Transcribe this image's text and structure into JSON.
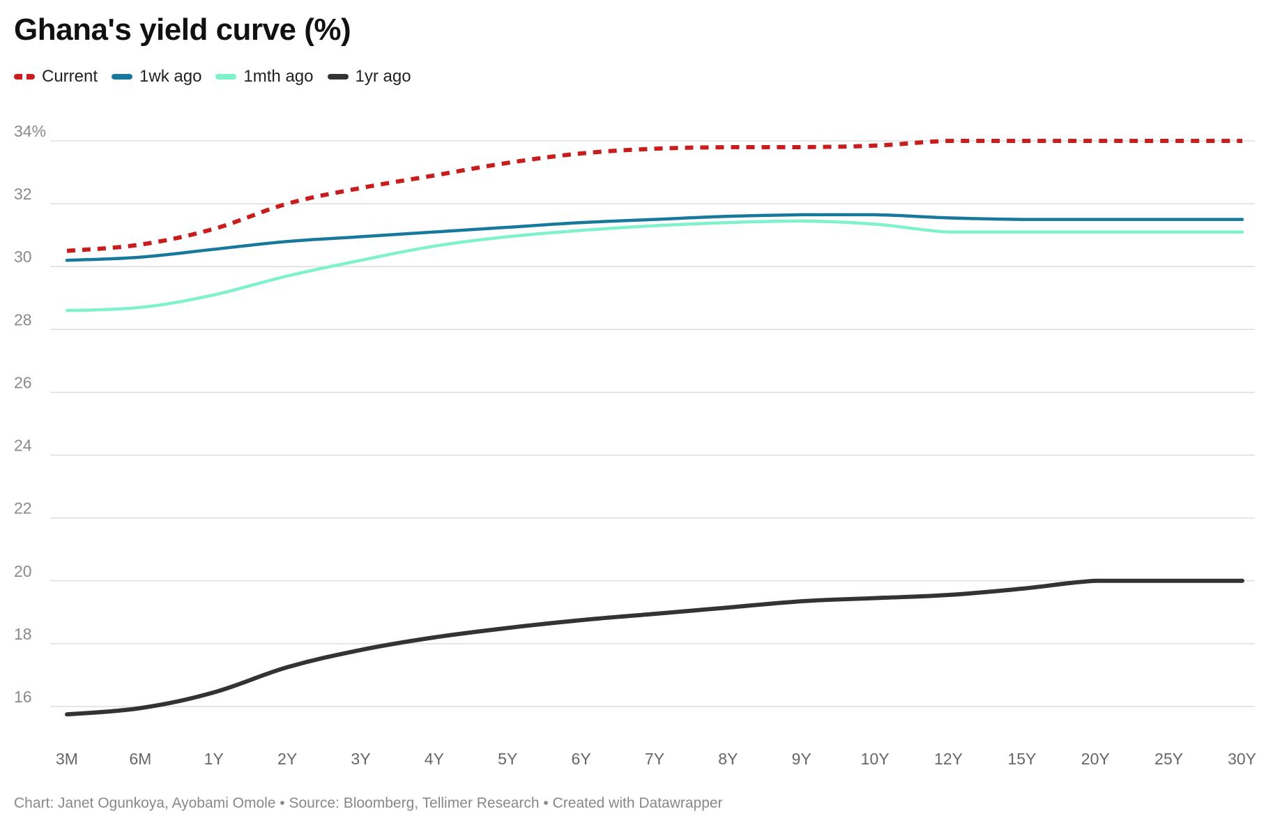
{
  "chart_data": {
    "type": "line",
    "title": "Ghana's yield curve (%)",
    "categories": [
      "3M",
      "6M",
      "1Y",
      "2Y",
      "3Y",
      "4Y",
      "5Y",
      "6Y",
      "7Y",
      "8Y",
      "9Y",
      "10Y",
      "12Y",
      "15Y",
      "20Y",
      "25Y",
      "30Y"
    ],
    "y_ticks": [
      "16",
      "18",
      "20",
      "22",
      "24",
      "26",
      "28",
      "30",
      "32",
      "34%"
    ],
    "ylim": [
      15,
      34.5
    ],
    "grid": true,
    "legend_position": "top-left",
    "series": [
      {
        "name": "Current",
        "color": "#c71e1d",
        "style": "dashed",
        "values": [
          30.5,
          30.7,
          31.2,
          32.0,
          32.5,
          32.9,
          33.3,
          33.6,
          33.75,
          33.8,
          33.8,
          33.85,
          34.0,
          34.0,
          34.0,
          34.0,
          34.0
        ]
      },
      {
        "name": "1wk ago",
        "color": "#18799c",
        "style": "solid",
        "values": [
          30.2,
          30.3,
          30.55,
          30.8,
          30.95,
          31.1,
          31.25,
          31.4,
          31.5,
          31.6,
          31.65,
          31.65,
          31.55,
          31.5,
          31.5,
          31.5,
          31.5
        ]
      },
      {
        "name": "1mth ago",
        "color": "#7ff2cd",
        "style": "solid",
        "values": [
          28.6,
          28.7,
          29.1,
          29.7,
          30.2,
          30.65,
          30.95,
          31.15,
          31.3,
          31.4,
          31.45,
          31.35,
          31.1,
          31.1,
          31.1,
          31.1,
          31.1
        ]
      },
      {
        "name": "1yr ago",
        "color": "#333333",
        "style": "solid",
        "values": [
          15.75,
          15.95,
          16.45,
          17.25,
          17.8,
          18.2,
          18.5,
          18.75,
          18.95,
          19.15,
          19.35,
          19.45,
          19.55,
          19.75,
          20.0,
          20.0,
          20.0
        ]
      }
    ]
  },
  "footer": {
    "text": "Chart: Janet Ogunkoya, Ayobami Omole • Source: Bloomberg, Tellimer Research • Created with Datawrapper"
  }
}
